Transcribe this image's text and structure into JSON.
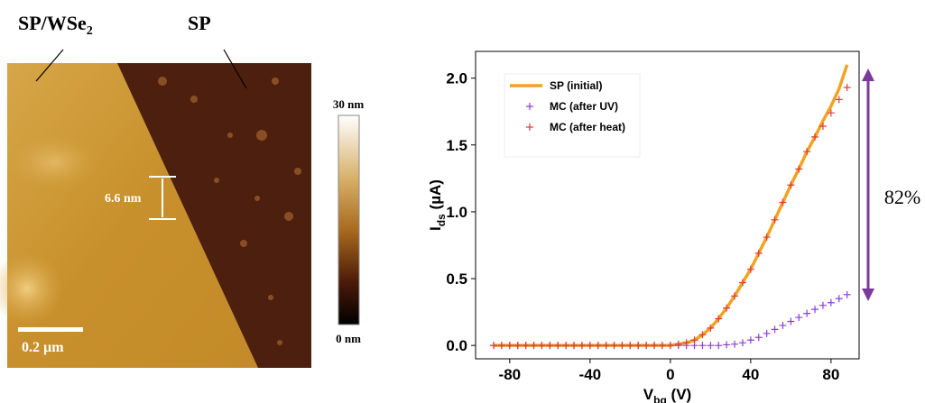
{
  "afm_panel": {
    "label_left": [
      "SP/WSe",
      "2"
    ],
    "label_right": "SP",
    "height_label": "6.6 nm",
    "scale_bar": "0.2 µm",
    "colorbar_max": "30 nm",
    "colorbar_min": "0 nm"
  },
  "chart_data": {
    "type": "line",
    "xlabel": [
      "V",
      "bg",
      " (V)"
    ],
    "ylabel": [
      "I",
      "ds",
      " (µA)"
    ],
    "x": [
      -88,
      -84,
      -80,
      -76,
      -72,
      -68,
      -64,
      -60,
      -56,
      -52,
      -48,
      -44,
      -40,
      -36,
      -32,
      -28,
      -24,
      -20,
      -16,
      -12,
      -8,
      -4,
      0,
      4,
      8,
      12,
      16,
      20,
      24,
      28,
      32,
      36,
      40,
      44,
      48,
      52,
      56,
      60,
      64,
      68,
      72,
      76,
      80,
      84,
      88
    ],
    "series": [
      {
        "name": "SP (initial)",
        "color": "#f2a322",
        "style": "line",
        "values": [
          0,
          0,
          0,
          0,
          0,
          0,
          0,
          0,
          0,
          0,
          0,
          0,
          0,
          0,
          0,
          0,
          0,
          0,
          0,
          0,
          0,
          0,
          0,
          0.01,
          0.02,
          0.04,
          0.08,
          0.13,
          0.2,
          0.28,
          0.37,
          0.47,
          0.57,
          0.69,
          0.81,
          0.94,
          1.07,
          1.2,
          1.32,
          1.45,
          1.56,
          1.68,
          1.79,
          1.92,
          2.1
        ]
      },
      {
        "name": "MC (after UV)",
        "color": "#8a3fd6",
        "style": "plus",
        "values": [
          0,
          0,
          0,
          0,
          0,
          0,
          0,
          0,
          0,
          0,
          0,
          0,
          0,
          0,
          0,
          0,
          0,
          0,
          0,
          0,
          0,
          0,
          0,
          0,
          0,
          0,
          0,
          0,
          0,
          0.005,
          0.01,
          0.02,
          0.04,
          0.06,
          0.09,
          0.12,
          0.15,
          0.18,
          0.21,
          0.24,
          0.27,
          0.3,
          0.32,
          0.35,
          0.38
        ]
      },
      {
        "name": "MC (after heat)",
        "color": "#e03c3c",
        "style": "plus",
        "values": [
          0,
          0,
          0,
          0,
          0,
          0,
          0,
          0,
          0,
          0,
          0,
          0,
          0,
          0,
          0,
          0,
          0,
          0,
          0,
          0,
          0,
          0,
          0,
          0.01,
          0.02,
          0.04,
          0.08,
          0.13,
          0.2,
          0.28,
          0.37,
          0.47,
          0.57,
          0.69,
          0.81,
          0.94,
          1.07,
          1.2,
          1.32,
          1.45,
          1.56,
          1.64,
          1.74,
          1.84,
          1.93
        ]
      }
    ],
    "xlim": [
      -97,
      94
    ],
    "ylim": [
      -0.1,
      2.2
    ],
    "xticks": [
      -80,
      -40,
      0,
      40,
      80
    ],
    "yticks": [
      {
        "value": 0,
        "label": "0.0"
      },
      {
        "value": 0.5,
        "label": "0.5"
      },
      {
        "value": 1,
        "label": "1.0"
      },
      {
        "value": 1.5,
        "label": "1.5"
      },
      {
        "value": 2,
        "label": "2.0"
      }
    ],
    "legend": "upper left",
    "grid": false,
    "annotation": "82%",
    "annotation_color": "#7b3a9c"
  }
}
